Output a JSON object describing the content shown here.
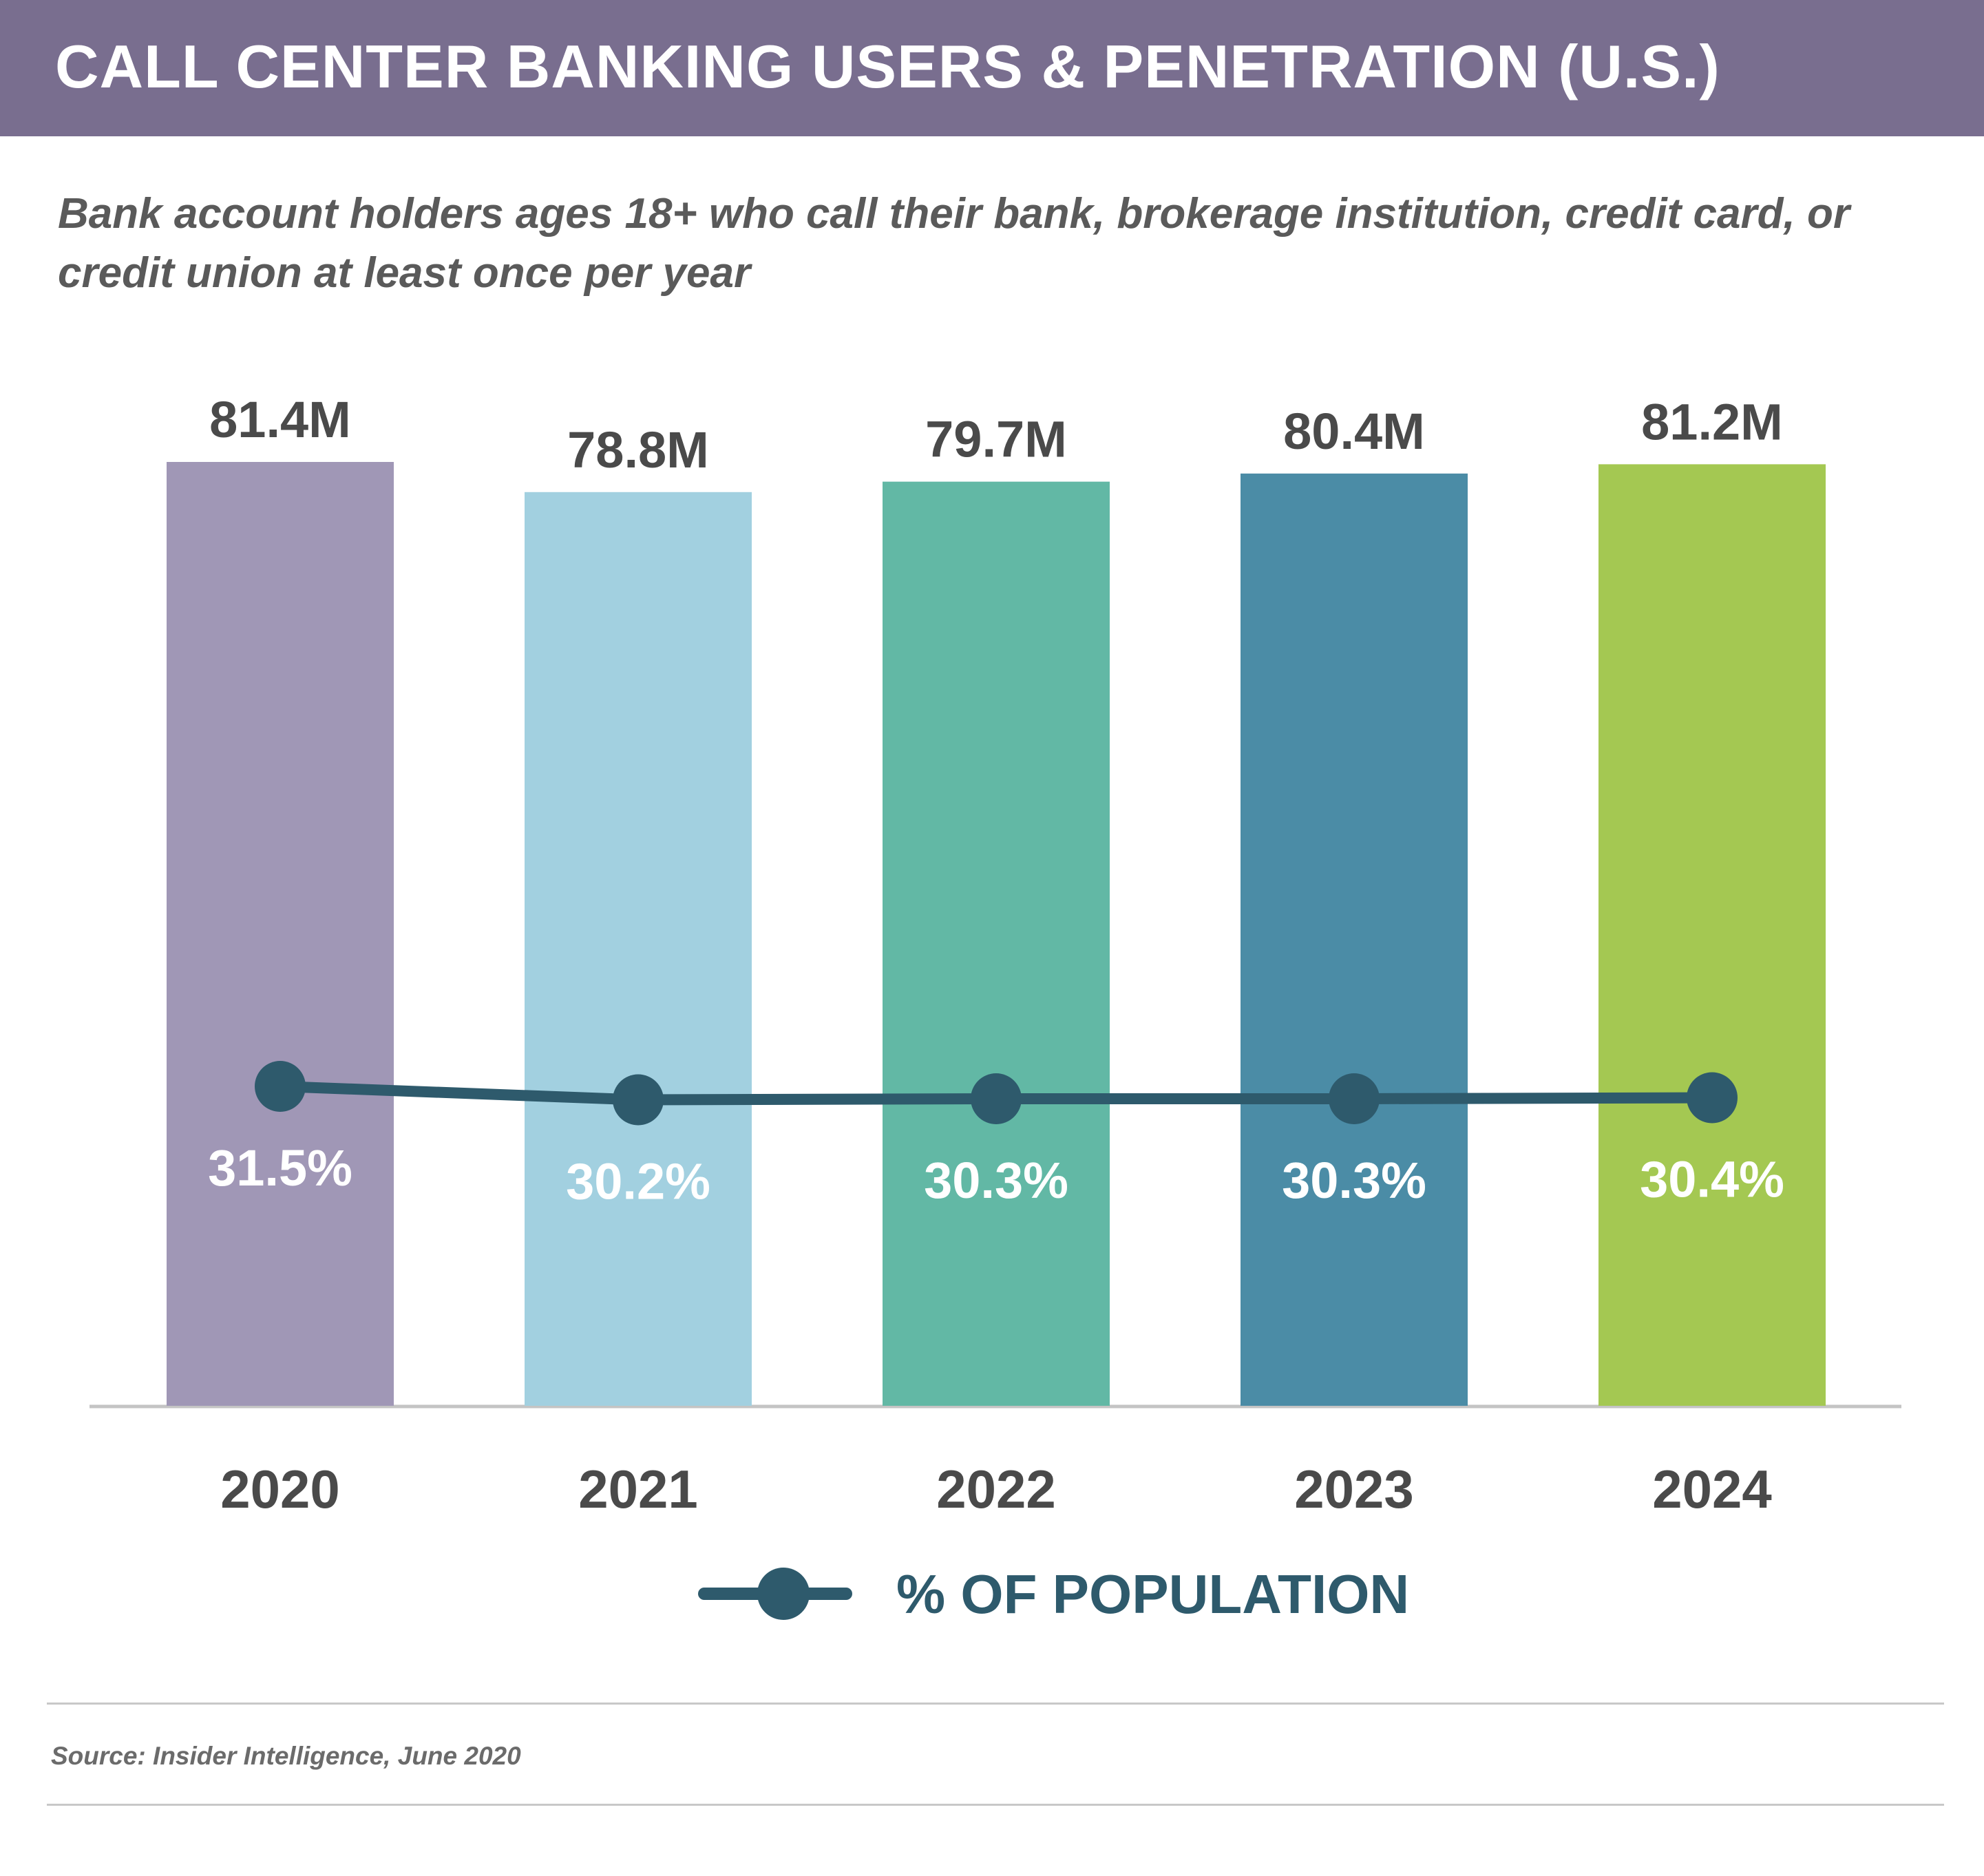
{
  "header": {
    "title": "CALL CENTER BANKING USERS & PENETRATION (U.S.)",
    "background": "#796e8f"
  },
  "subtitle": "Bank account holders ages 18+ who call their bank, brokerage institution, credit card, or credit union at least once per year",
  "chart_data": {
    "type": "bar",
    "categories": [
      "2020",
      "2021",
      "2022",
      "2023",
      "2024"
    ],
    "series": [
      {
        "values": [
          81.4,
          78.8,
          79.7,
          80.4,
          81.2
        ],
        "labels": [
          "81.4M",
          "78.8M",
          "79.7M",
          "80.4M",
          "81.2M"
        ],
        "colors": [
          "#a097b6",
          "#a2d0e0",
          "#62b8a5",
          "#4b8ca6",
          "#a4c852"
        ]
      },
      {
        "name": "% OF POPULATION",
        "type": "line",
        "values": [
          31.5,
          30.2,
          30.3,
          30.3,
          30.4
        ],
        "labels": [
          "31.5%",
          "30.2%",
          "30.3%",
          "30.3%",
          "30.4%"
        ],
        "color": "#2e5a6c"
      }
    ],
    "grid": false,
    "legend_position": "bottom-center"
  },
  "legend": {
    "label": "% OF POPULATION",
    "color": "#2e5a6c"
  },
  "source": "Source: Insider Intelligence, June 2020"
}
